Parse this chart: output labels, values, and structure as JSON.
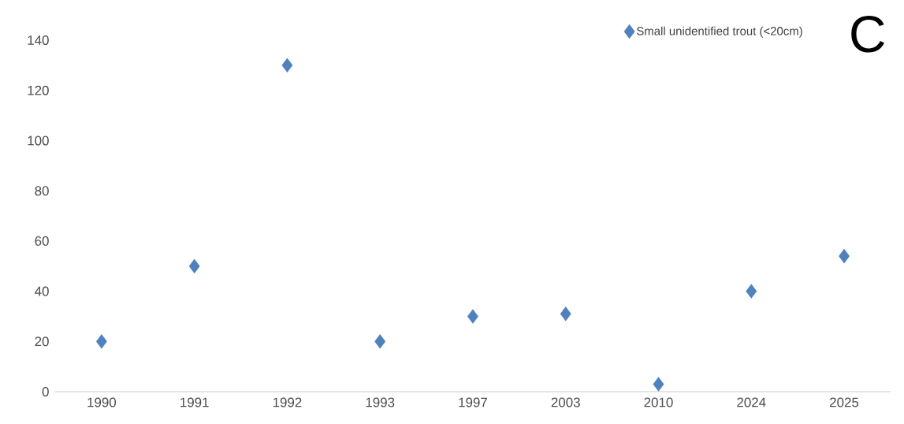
{
  "chart_data": {
    "type": "scatter",
    "annotations": [
      "C"
    ],
    "categories": [
      "1990",
      "1991",
      "1992",
      "1993",
      "1997",
      "2003",
      "2010",
      "2024",
      "2025"
    ],
    "series": [
      {
        "name": "Small unidentified trout (<20cm)",
        "color": "#4f81bd",
        "values": [
          20,
          50,
          130,
          20,
          30,
          31,
          3,
          40,
          54
        ]
      }
    ],
    "ylim": [
      0,
      140
    ],
    "yticks": [
      0,
      20,
      40,
      60,
      80,
      100,
      120,
      140
    ],
    "marker": "diamond",
    "legend": "top right",
    "grid": false
  }
}
